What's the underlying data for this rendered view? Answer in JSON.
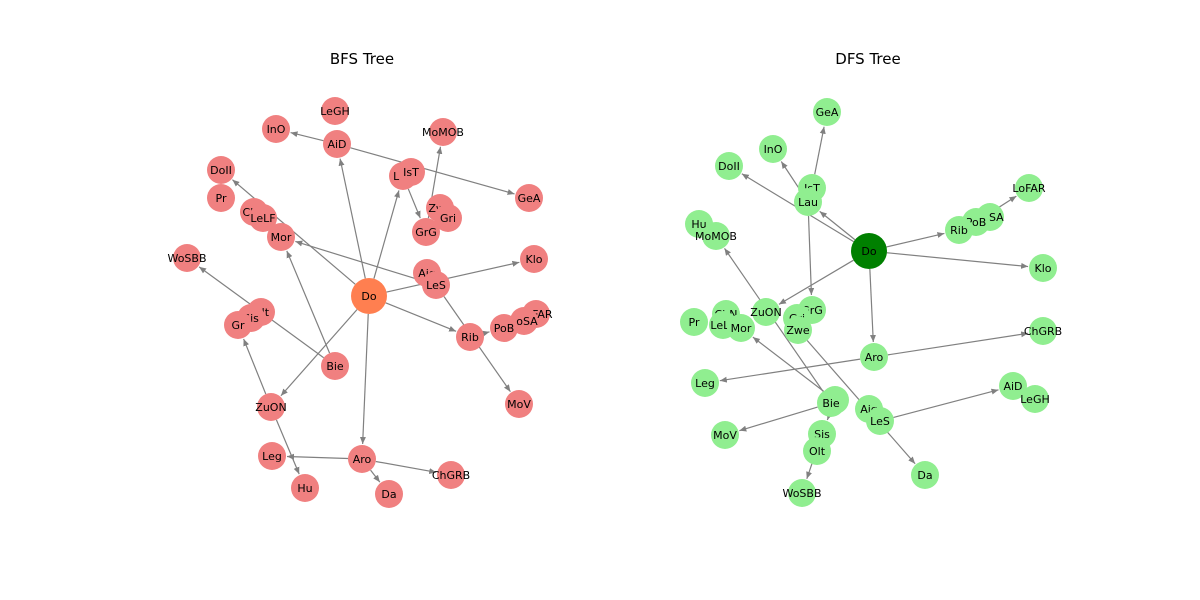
{
  "colors": {
    "edge": "#808080",
    "bfs_root": "#ff7f50",
    "bfs_node": "#f08080",
    "dfs_root": "#008000",
    "dfs_node": "#90ee90"
  },
  "diagrams": [
    {
      "id": "bfs",
      "title": "BFS Tree",
      "root": "Do",
      "nodes": [
        {
          "id": "Do",
          "label": "Do"
        },
        {
          "id": "LeGH",
          "label": "LeGH"
        },
        {
          "id": "InO",
          "label": "InO"
        },
        {
          "id": "AiD",
          "label": "AiD"
        },
        {
          "id": "MoMOB",
          "label": "MoMOB"
        },
        {
          "id": "DoII",
          "label": "DoII"
        },
        {
          "id": "Lau",
          "label": "Lau"
        },
        {
          "id": "IsT",
          "label": "IsT"
        },
        {
          "id": "GeA",
          "label": "GeA"
        },
        {
          "id": "Pr",
          "label": "Pr"
        },
        {
          "id": "ChN",
          "label": "ChN"
        },
        {
          "id": "LeLF",
          "label": "LeLF"
        },
        {
          "id": "Zwe",
          "label": "Zwe"
        },
        {
          "id": "Gri",
          "label": "Gri"
        },
        {
          "id": "GrG",
          "label": "GrG"
        },
        {
          "id": "Mor",
          "label": "Mor"
        },
        {
          "id": "WoSBB",
          "label": "WoSBB"
        },
        {
          "id": "Klo",
          "label": "Klo"
        },
        {
          "id": "Aig",
          "label": "Aig"
        },
        {
          "id": "LeS",
          "label": "LeS"
        },
        {
          "id": "Olt",
          "label": "Olt"
        },
        {
          "id": "Sis",
          "label": "Sis"
        },
        {
          "id": "Gr",
          "label": "Gr"
        },
        {
          "id": "LoFAR",
          "label": "LoFAR"
        },
        {
          "id": "LoSA",
          "label": "LoSA"
        },
        {
          "id": "PoB",
          "label": "PoB"
        },
        {
          "id": "Rib",
          "label": "Rib"
        },
        {
          "id": "Bie",
          "label": "Bie"
        },
        {
          "id": "MoV",
          "label": "MoV"
        },
        {
          "id": "ZuON",
          "label": "ZuON"
        },
        {
          "id": "Leg",
          "label": "Leg"
        },
        {
          "id": "Aro",
          "label": "Aro"
        },
        {
          "id": "ChGRB",
          "label": "ChGRB"
        },
        {
          "id": "Hu",
          "label": "Hu"
        },
        {
          "id": "Da",
          "label": "Da"
        }
      ],
      "edges": [
        [
          "Do",
          "Lau"
        ],
        [
          "Do",
          "AiD"
        ],
        [
          "Do",
          "DoII"
        ],
        [
          "Do",
          "Klo"
        ],
        [
          "Do",
          "Rib"
        ],
        [
          "Do",
          "ZuON"
        ],
        [
          "Do",
          "Aro"
        ],
        [
          "AiD",
          "InO"
        ],
        [
          "AiD",
          "GeA"
        ],
        [
          "Lau",
          "GrG"
        ],
        [
          "GrG",
          "MoMOB"
        ],
        [
          "LeS",
          "Mor"
        ],
        [
          "LeS",
          "MoV"
        ],
        [
          "Bie",
          "WoSBB"
        ],
        [
          "Bie",
          "Mor"
        ],
        [
          "ZuON",
          "Gr"
        ],
        [
          "ZuON",
          "Hu"
        ],
        [
          "Rib",
          "PoB"
        ],
        [
          "Aro",
          "Leg"
        ],
        [
          "Aro",
          "ChGRB"
        ],
        [
          "Aro",
          "Da"
        ]
      ]
    },
    {
      "id": "dfs",
      "title": "DFS Tree",
      "root": "Do",
      "nodes": [
        {
          "id": "Do",
          "label": "Do"
        },
        {
          "id": "GeA",
          "label": "GeA"
        },
        {
          "id": "InO",
          "label": "InO"
        },
        {
          "id": "DoII",
          "label": "DoII"
        },
        {
          "id": "IsT",
          "label": "IsT"
        },
        {
          "id": "Lau",
          "label": "Lau"
        },
        {
          "id": "LoFAR",
          "label": "LoFAR"
        },
        {
          "id": "Hu",
          "label": "Hu"
        },
        {
          "id": "MoMOB",
          "label": "MoMOB"
        },
        {
          "id": "LoSA",
          "label": "LoSA"
        },
        {
          "id": "PoB",
          "label": "PoB"
        },
        {
          "id": "Rib",
          "label": "Rib"
        },
        {
          "id": "Klo",
          "label": "Klo"
        },
        {
          "id": "ChN",
          "label": "ChN"
        },
        {
          "id": "ZuON",
          "label": "ZuON"
        },
        {
          "id": "GrG",
          "label": "GrG"
        },
        {
          "id": "Pr",
          "label": "Pr"
        },
        {
          "id": "LeLF",
          "label": "LeLF"
        },
        {
          "id": "Mor",
          "label": "Mor"
        },
        {
          "id": "Gri",
          "label": "Gri"
        },
        {
          "id": "Zwe",
          "label": "Zwe"
        },
        {
          "id": "ChGRB",
          "label": "ChGRB"
        },
        {
          "id": "Aro",
          "label": "Aro"
        },
        {
          "id": "Leg",
          "label": "Leg"
        },
        {
          "id": "AiD",
          "label": "AiD"
        },
        {
          "id": "LeGH",
          "label": "LeGH"
        },
        {
          "id": "Gr",
          "label": "Gr"
        },
        {
          "id": "Bie",
          "label": "Bie"
        },
        {
          "id": "Aig",
          "label": "Aig"
        },
        {
          "id": "LeS",
          "label": "LeS"
        },
        {
          "id": "MoV",
          "label": "MoV"
        },
        {
          "id": "Sis",
          "label": "Sis"
        },
        {
          "id": "Olt",
          "label": "Olt"
        },
        {
          "id": "Da",
          "label": "Da"
        },
        {
          "id": "WoSBB",
          "label": "WoSBB"
        }
      ],
      "edges": [
        [
          "Do",
          "Lau"
        ],
        [
          "Do",
          "DoII"
        ],
        [
          "Do",
          "Rib"
        ],
        [
          "Do",
          "Klo"
        ],
        [
          "Do",
          "ZuON"
        ],
        [
          "Do",
          "Aro"
        ],
        [
          "IsT",
          "GeA"
        ],
        [
          "Lau",
          "InO"
        ],
        [
          "Lau",
          "GrG"
        ],
        [
          "PoB",
          "LoFAR"
        ],
        [
          "Bie",
          "MoMOB"
        ],
        [
          "Gr",
          "Mor"
        ],
        [
          "Aro",
          "Leg"
        ],
        [
          "Aro",
          "ChGRB"
        ],
        [
          "LeS",
          "AiD"
        ],
        [
          "Zwe",
          "Da"
        ],
        [
          "Bie",
          "MoV"
        ],
        [
          "Gr",
          "Sis"
        ],
        [
          "Sis",
          "WoSBB"
        ]
      ]
    }
  ]
}
